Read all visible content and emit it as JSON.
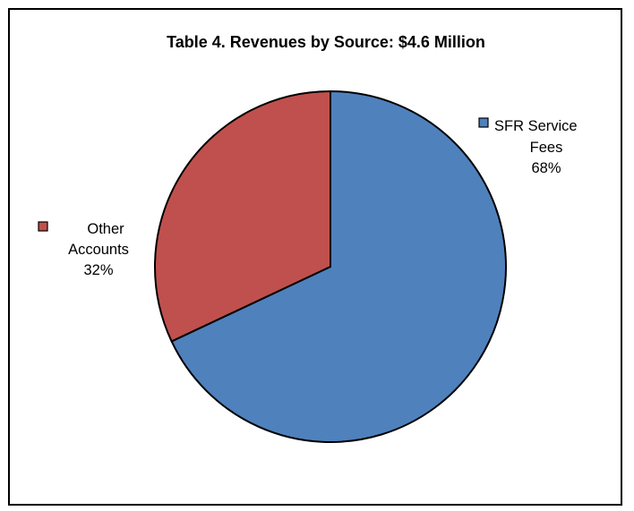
{
  "chart_data": {
    "type": "pie",
    "title": "Table 4. Revenues by Source: $4.6 Million",
    "slices": [
      {
        "name": "SFR Service Fees",
        "label_lines": [
          "SFR Service",
          "Fees"
        ],
        "value": 68,
        "percent_label": "68%",
        "color": "#4F81BD"
      },
      {
        "name": "Other Accounts",
        "label_lines": [
          "Other",
          "Accounts"
        ],
        "value": 32,
        "percent_label": "32%",
        "color": "#C0504D"
      }
    ],
    "start_angle_deg": 0,
    "direction": "clockwise",
    "legend": "inline-labels"
  }
}
